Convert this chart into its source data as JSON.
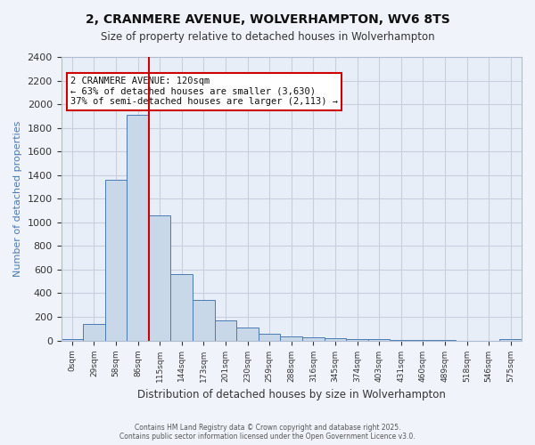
{
  "title_line1": "2, CRANMERE AVENUE, WOLVERHAMPTON, WV6 8TS",
  "title_line2": "Size of property relative to detached houses in Wolverhampton",
  "xlabel": "Distribution of detached houses by size in Wolverhampton",
  "ylabel": "Number of detached properties",
  "bin_labels": [
    "0sqm",
    "29sqm",
    "58sqm",
    "86sqm",
    "115sqm",
    "144sqm",
    "173sqm",
    "201sqm",
    "230sqm",
    "259sqm",
    "288sqm",
    "316sqm",
    "345sqm",
    "374sqm",
    "403sqm",
    "431sqm",
    "460sqm",
    "489sqm",
    "518sqm",
    "546sqm",
    "575sqm"
  ],
  "bar_values": [
    10,
    140,
    1360,
    1910,
    1060,
    560,
    340,
    170,
    110,
    55,
    35,
    30,
    20,
    15,
    10,
    5,
    3,
    2,
    0,
    0,
    15
  ],
  "bar_color": "#c8d8e8",
  "bar_edge_color": "#4a7ab5",
  "grid_color": "#c8d0e0",
  "bg_color": "#e8eef8",
  "fig_bg_color": "#f0f4fa",
  "ylim": [
    0,
    2400
  ],
  "yticks": [
    0,
    200,
    400,
    600,
    800,
    1000,
    1200,
    1400,
    1600,
    1800,
    2000,
    2200,
    2400
  ],
  "red_line_bin": 4,
  "annotation_title": "2 CRANMERE AVENUE: 120sqm",
  "annotation_line1": "← 63% of detached houses are smaller (3,630)",
  "annotation_line2": "37% of semi-detached houses are larger (2,113) →",
  "annotation_box_color": "#ffffff",
  "annotation_border_color": "#cc0000",
  "footer_line1": "Contains HM Land Registry data © Crown copyright and database right 2025.",
  "footer_line2": "Contains public sector information licensed under the Open Government Licence v3.0."
}
